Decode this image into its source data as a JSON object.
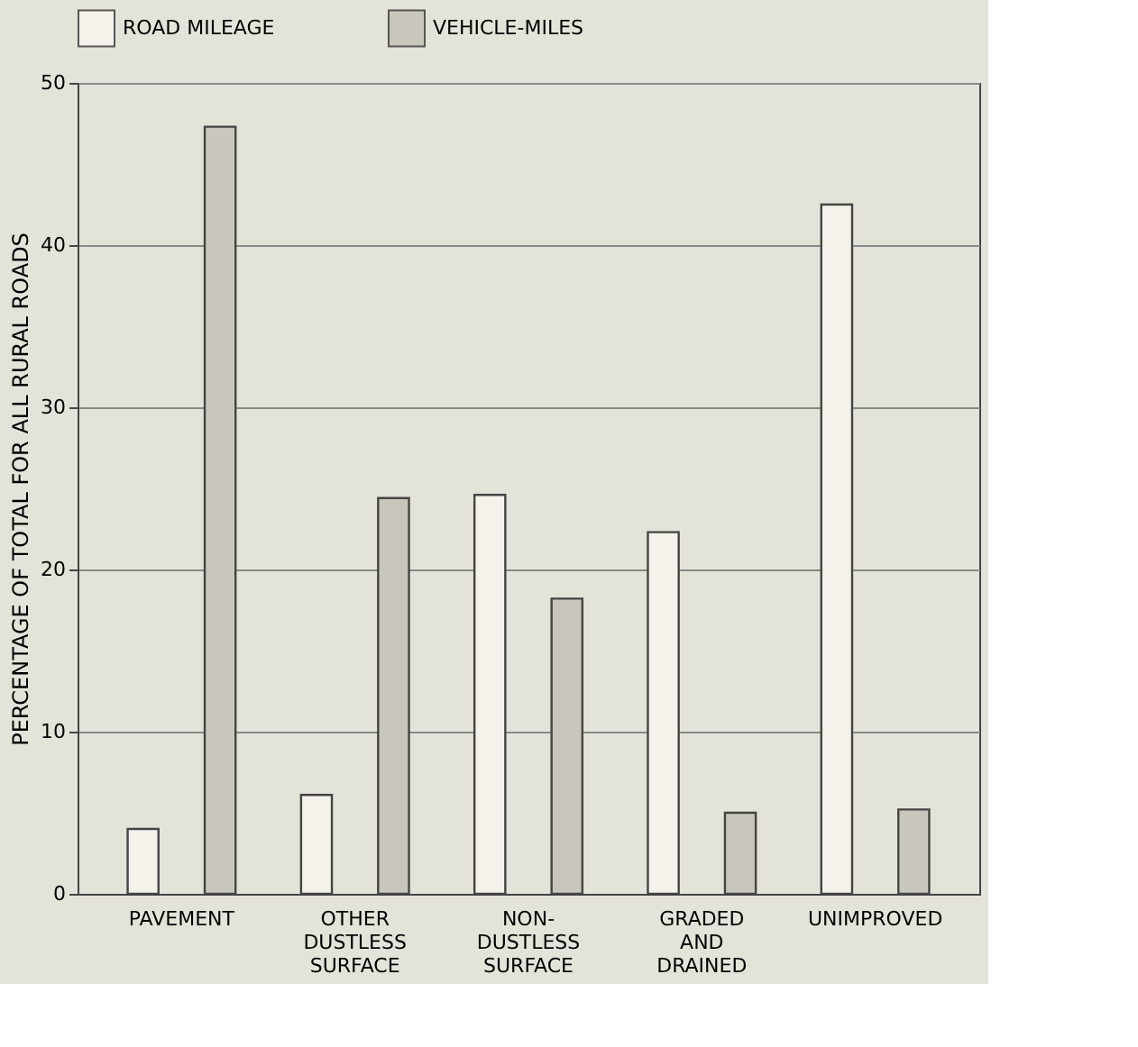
{
  "chart_data": {
    "type": "bar",
    "ylabel": "PERCENTAGE OF TOTAL FOR ALL RURAL ROADS",
    "categories": [
      "PAVEMENT",
      "OTHER\nDUSTLESS\nSURFACE",
      "NON-\nDUSTLESS\nSURFACE",
      "GRADED\nAND\nDRAINED",
      "UNIMPROVED"
    ],
    "series": [
      {
        "name": "ROAD MILEAGE",
        "color": "#f4f2ea",
        "values": [
          4.0,
          6.1,
          24.6,
          22.3,
          42.5
        ]
      },
      {
        "name": "VEHICLE-MILES",
        "color": "#c9c7bd",
        "values": [
          47.3,
          24.4,
          18.2,
          5.0,
          5.2
        ]
      }
    ],
    "ylim": [
      0,
      50
    ],
    "yticks": [
      0,
      10,
      20,
      30,
      40,
      50
    ],
    "grid": "y",
    "legend": "top"
  }
}
